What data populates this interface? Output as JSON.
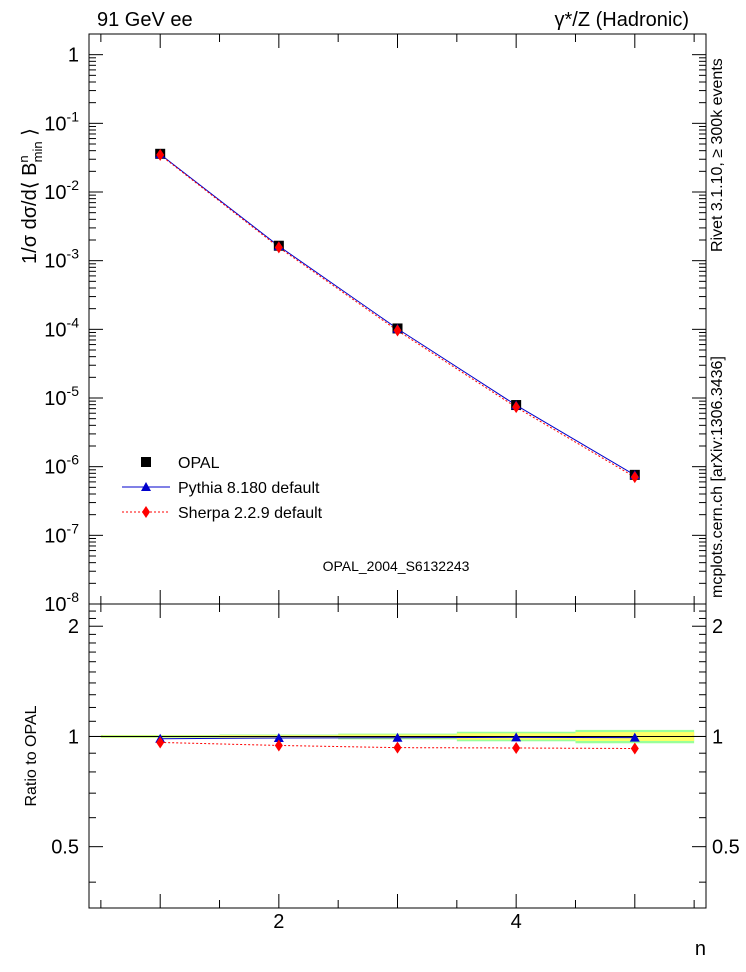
{
  "header": {
    "left": "91 GeV ee",
    "right": "γ*/Z (Hadronic)"
  },
  "side_labels": {
    "rivet": "Rivet 3.1.10, ≥ 300k events",
    "mcplots": "mcplots.cern.ch [arXiv:1306.3436]"
  },
  "watermark": "OPAL_2004_S6132243",
  "colors": {
    "opal": "#000000",
    "pythia": "#0000cc",
    "sherpa": "#ff0000",
    "band_inner": "#ffff66",
    "band_outer": "#99ff99"
  },
  "chart_data": [
    {
      "type": "scatter",
      "panel": "main",
      "ylabel": "1/σ dσ/d⟨ B^n_min ⟩",
      "yscale": "log",
      "ylim": [
        1e-08,
        2.0
      ],
      "xlim": [
        0.4,
        5.6
      ],
      "y_tick_labels": [
        "1",
        "10^-1",
        "10^-2",
        "10^-3",
        "10^-4",
        "10^-5",
        "10^-6",
        "10^-7",
        "10^-8"
      ],
      "legend_position": "bottom-left",
      "x": [
        1,
        2,
        3,
        4,
        5
      ],
      "series": [
        {
          "name": "OPAL",
          "marker": "square",
          "line": "none",
          "values": [
            0.036,
            0.00165,
            0.000103,
            7.9e-06,
            7.6e-07
          ]
        },
        {
          "name": "Pythia 8.180 default",
          "marker": "triangle",
          "line": "solid",
          "values": [
            0.0355,
            0.00163,
            0.000102,
            7.85e-06,
            7.55e-07
          ]
        },
        {
          "name": "Sherpa 2.2.9 default",
          "marker": "diamond",
          "line": "dotted",
          "values": [
            0.0347,
            0.00156,
            9.6e-05,
            7.35e-06,
            7.05e-07
          ]
        }
      ]
    },
    {
      "type": "scatter",
      "panel": "ratio",
      "ylabel": "Ratio to OPAL",
      "xlabel": "n",
      "ylim": [
        0.34,
        2.3
      ],
      "y_ticks": [
        0.5,
        1,
        2
      ],
      "y_tick_labels": [
        "0.5",
        "1",
        "2"
      ],
      "x_ticks": [
        2,
        4
      ],
      "x_tick_labels": [
        "2",
        "4"
      ],
      "x": [
        1,
        2,
        3,
        4,
        5
      ],
      "band": {
        "inner": [
          0.006,
          0.008,
          0.012,
          0.02,
          0.028
        ],
        "outer": [
          0.009,
          0.012,
          0.018,
          0.03,
          0.042
        ]
      },
      "series": [
        {
          "name": "Pythia 8.180 default",
          "values": [
            0.986,
            0.99,
            0.992,
            0.994,
            0.993
          ]
        },
        {
          "name": "Sherpa 2.2.9 default",
          "values": [
            0.963,
            0.945,
            0.932,
            0.93,
            0.927
          ]
        }
      ]
    }
  ]
}
